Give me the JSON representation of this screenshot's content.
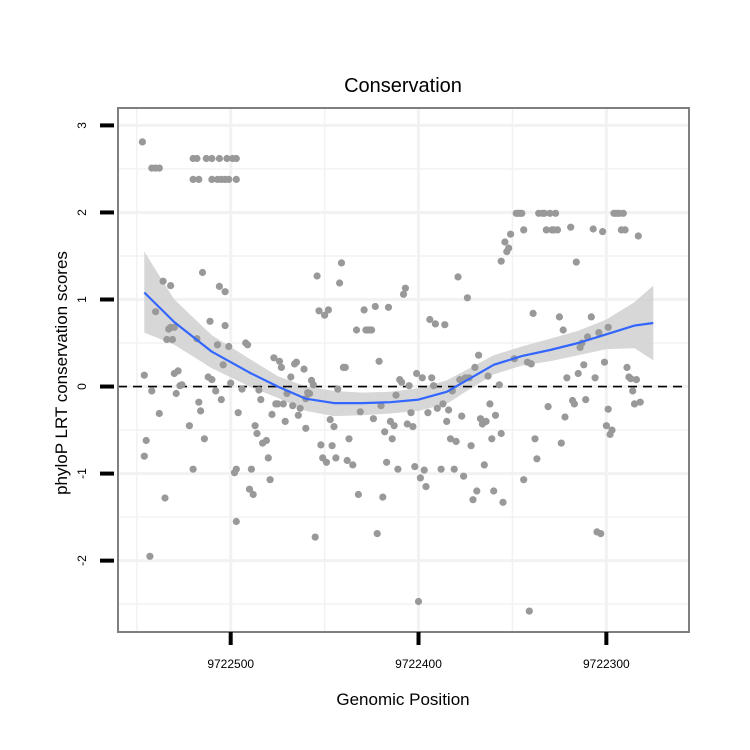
{
  "chart_data": {
    "type": "scatter",
    "title": "Conservation",
    "xlabel": "Genomic Position",
    "ylabel": "phyloP LRT conservation scores",
    "x_reversed": true,
    "xlim": [
      9722560,
      9722256
    ],
    "ylim": [
      -2.82,
      3.2
    ],
    "x_ticks": [
      9722500,
      9722400,
      9722300
    ],
    "x_tick_labels": [
      "9722500",
      "9722400",
      "9722300"
    ],
    "y_ticks": [
      3,
      2,
      1,
      0,
      -1,
      -2
    ],
    "y_tick_labels": [
      "3",
      "2",
      "1",
      "0",
      "-1",
      "-2"
    ],
    "grid": true,
    "reference_line": {
      "y": 0,
      "style": "dashed"
    },
    "colors": {
      "points": "#999999",
      "smooth_line": "#3366ff",
      "confidence_band": "#d0d0d0",
      "panel_border": "#7f7f7f",
      "grid": "#f2f2f2"
    },
    "points": [
      [
        9722547,
        2.81
      ],
      [
        9722542,
        2.51
      ],
      [
        9722540,
        2.51
      ],
      [
        9722538,
        2.51
      ],
      [
        9722520,
        2.62
      ],
      [
        9722518,
        2.62
      ],
      [
        9722513,
        2.62
      ],
      [
        9722510,
        2.62
      ],
      [
        9722506,
        2.62
      ],
      [
        9722502,
        2.62
      ],
      [
        9722499,
        2.62
      ],
      [
        9722497,
        2.62
      ],
      [
        9722520,
        2.38
      ],
      [
        9722517,
        2.38
      ],
      [
        9722510,
        2.38
      ],
      [
        9722507,
        2.38
      ],
      [
        9722505,
        2.38
      ],
      [
        9722503,
        2.38
      ],
      [
        9722501,
        2.38
      ],
      [
        9722497,
        2.38
      ],
      [
        9722546,
        0.13
      ],
      [
        9722545,
        -0.62
      ],
      [
        9722546,
        -0.8
      ],
      [
        9722543,
        -1.95
      ],
      [
        9722542,
        -0.05
      ],
      [
        9722540,
        0.86
      ],
      [
        9722538,
        -0.31
      ],
      [
        9722536,
        1.21
      ],
      [
        9722535,
        -1.28
      ],
      [
        9722534,
        0.54
      ],
      [
        9722533,
        0.66
      ],
      [
        9722532,
        1.16
      ],
      [
        9722532,
        0.68
      ],
      [
        9722531,
        0.54
      ],
      [
        9722530,
        0.15
      ],
      [
        9722530,
        0.68
      ],
      [
        9722529,
        -0.08
      ],
      [
        9722528,
        0.18
      ],
      [
        9722527,
        0.01
      ],
      [
        9722526,
        0.02
      ],
      [
        9722522,
        -0.45
      ],
      [
        9722520,
        -0.95
      ],
      [
        9722518,
        0.55
      ],
      [
        9722517,
        -0.18
      ],
      [
        9722516,
        -0.28
      ],
      [
        9722515,
        1.31
      ],
      [
        9722514,
        -0.6
      ],
      [
        9722512,
        0.11
      ],
      [
        9722511,
        0.75
      ],
      [
        9722510,
        0.08
      ],
      [
        9722508,
        -0.05
      ],
      [
        9722507,
        0.48
      ],
      [
        9722506,
        1.15
      ],
      [
        9722505,
        -0.15
      ],
      [
        9722504,
        0.25
      ],
      [
        9722503,
        0.7
      ],
      [
        9722503,
        1.09
      ],
      [
        9722501,
        0.46
      ],
      [
        9722500,
        0.04
      ],
      [
        9722498,
        -0.99
      ],
      [
        9722497,
        -0.95
      ],
      [
        9722497,
        -1.55
      ],
      [
        9722496,
        -0.3
      ],
      [
        9722494,
        -0.03
      ],
      [
        9722492,
        0.5
      ],
      [
        9722491,
        0.48
      ],
      [
        9722490,
        -1.18
      ],
      [
        9722489,
        -0.95
      ],
      [
        9722488,
        -1.24
      ],
      [
        9722487,
        -0.45
      ],
      [
        9722486,
        -0.54
      ],
      [
        9722485,
        -0.04
      ],
      [
        9722484,
        -0.15
      ],
      [
        9722483,
        -0.65
      ],
      [
        9722481,
        -0.62
      ],
      [
        9722480,
        -0.82
      ],
      [
        9722479,
        -1.07
      ],
      [
        9722478,
        -0.32
      ],
      [
        9722477,
        0.33
      ],
      [
        9722476,
        -0.2
      ],
      [
        9722475,
        -0.2
      ],
      [
        9722474,
        0.29
      ],
      [
        9722473,
        0.22
      ],
      [
        9722472,
        -0.2
      ],
      [
        9722471,
        -0.4
      ],
      [
        9722470,
        -0.08
      ],
      [
        9722468,
        0.11
      ],
      [
        9722467,
        -0.22
      ],
      [
        9722466,
        0.26
      ],
      [
        9722465,
        0.28
      ],
      [
        9722464,
        -0.33
      ],
      [
        9722463,
        -0.25
      ],
      [
        9722461,
        0.2
      ],
      [
        9722460,
        -0.14
      ],
      [
        9722460,
        -0.48
      ],
      [
        9722459,
        -0.07
      ],
      [
        9722458,
        -0.08
      ],
      [
        9722457,
        0.07
      ],
      [
        9722456,
        0.02
      ],
      [
        9722455,
        -1.73
      ],
      [
        9722454,
        1.27
      ],
      [
        9722453,
        0.87
      ],
      [
        9722452,
        -0.67
      ],
      [
        9722451,
        -0.82
      ],
      [
        9722450,
        0.82
      ],
      [
        9722449,
        -0.87
      ],
      [
        9722448,
        0.88
      ],
      [
        9722447,
        -0.38
      ],
      [
        9722446,
        -0.68
      ],
      [
        9722445,
        -0.46
      ],
      [
        9722444,
        -0.82
      ],
      [
        9722443,
        -0.03
      ],
      [
        9722442,
        1.19
      ],
      [
        9722441,
        1.42
      ],
      [
        9722440,
        0.22
      ],
      [
        9722439,
        0.22
      ],
      [
        9722438,
        -0.85
      ],
      [
        9722437,
        -0.6
      ],
      [
        9722435,
        -0.9
      ],
      [
        9722433,
        0.65
      ],
      [
        9722432,
        -1.24
      ],
      [
        9722431,
        -0.29
      ],
      [
        9722429,
        0.88
      ],
      [
        9722428,
        0.65
      ],
      [
        9722427,
        0.65
      ],
      [
        9722426,
        0.65
      ],
      [
        9722425,
        0.65
      ],
      [
        9722424,
        -0.37
      ],
      [
        9722423,
        0.92
      ],
      [
        9722422,
        -1.69
      ],
      [
        9722421,
        0.29
      ],
      [
        9722420,
        -0.22
      ],
      [
        9722419,
        -1.27
      ],
      [
        9722418,
        -0.52
      ],
      [
        9722417,
        -0.87
      ],
      [
        9722416,
        0.91
      ],
      [
        9722415,
        -0.4
      ],
      [
        9722414,
        -0.6
      ],
      [
        9722413,
        -0.45
      ],
      [
        9722412,
        -0.1
      ],
      [
        9722411,
        -0.95
      ],
      [
        9722410,
        0.08
      ],
      [
        9722409,
        0.05
      ],
      [
        9722408,
        1.06
      ],
      [
        9722407,
        1.13
      ],
      [
        9722406,
        -0.43
      ],
      [
        9722405,
        0.01
      ],
      [
        9722404,
        -0.3
      ],
      [
        9722403,
        -0.46
      ],
      [
        9722402,
        -0.92
      ],
      [
        9722401,
        0.15
      ],
      [
        9722400,
        -2.47
      ],
      [
        9722399,
        -1.05
      ],
      [
        9722398,
        0.1
      ],
      [
        9722397,
        -0.96
      ],
      [
        9722396,
        -1.15
      ],
      [
        9722395,
        -0.3
      ],
      [
        9722394,
        0.77
      ],
      [
        9722393,
        0.1
      ],
      [
        9722392,
        0.01
      ],
      [
        9722391,
        0.72
      ],
      [
        9722390,
        -0.25
      ],
      [
        9722388,
        -0.95
      ],
      [
        9722387,
        -0.2
      ],
      [
        9722386,
        0.71
      ],
      [
        9722385,
        -0.4
      ],
      [
        9722384,
        -0.27
      ],
      [
        9722383,
        -0.6
      ],
      [
        9722382,
        -0.05
      ],
      [
        9722381,
        -0.95
      ],
      [
        9722380,
        -0.63
      ],
      [
        9722379,
        1.26
      ],
      [
        9722378,
        0.08
      ],
      [
        9722377,
        -0.34
      ],
      [
        9722376,
        -1.03
      ],
      [
        9722375,
        0.1
      ],
      [
        9722374,
        1.02
      ],
      [
        9722373,
        0.1
      ],
      [
        9722372,
        -0.68
      ],
      [
        9722371,
        -1.3
      ],
      [
        9722370,
        0.22
      ],
      [
        9722369,
        -1.2
      ],
      [
        9722368,
        0.36
      ],
      [
        9722367,
        -0.37
      ],
      [
        9722366,
        -0.43
      ],
      [
        9722365,
        -0.9
      ],
      [
        9722364,
        -0.4
      ],
      [
        9722363,
        0.12
      ],
      [
        9722362,
        -0.2
      ],
      [
        9722361,
        -0.6
      ],
      [
        9722360,
        -1.2
      ],
      [
        9722359,
        -0.33
      ],
      [
        9722357,
        0.02
      ],
      [
        9722356,
        -0.54
      ],
      [
        9722356,
        1.44
      ],
      [
        9722355,
        -1.33
      ],
      [
        9722354,
        1.66
      ],
      [
        9722353,
        1.55
      ],
      [
        9722352,
        1.59
      ],
      [
        9722351,
        1.75
      ],
      [
        9722349,
        0.32
      ],
      [
        9722348,
        1.99
      ],
      [
        9722347,
        1.99
      ],
      [
        9722346,
        1.99
      ],
      [
        9722345,
        1.99
      ],
      [
        9722344,
        -1.07
      ],
      [
        9722344,
        1.8
      ],
      [
        9722342,
        0.28
      ],
      [
        9722341,
        -2.58
      ],
      [
        9722340,
        0.26
      ],
      [
        9722339,
        0.84
      ],
      [
        9722338,
        -0.6
      ],
      [
        9722337,
        -0.83
      ],
      [
        9722336,
        1.99
      ],
      [
        9722334,
        1.99
      ],
      [
        9722333,
        1.99
      ],
      [
        9722332,
        1.8
      ],
      [
        9722331,
        -0.23
      ],
      [
        9722330,
        1.99
      ],
      [
        9722329,
        1.8
      ],
      [
        9722328,
        1.8
      ],
      [
        9722327,
        1.99
      ],
      [
        9722326,
        1.8
      ],
      [
        9722325,
        0.8
      ],
      [
        9722324,
        -0.65
      ],
      [
        9722323,
        0.65
      ],
      [
        9722322,
        -0.35
      ],
      [
        9722321,
        0.1
      ],
      [
        9722319,
        1.83
      ],
      [
        9722318,
        -0.16
      ],
      [
        9722317,
        -0.2
      ],
      [
        9722316,
        1.43
      ],
      [
        9722315,
        0.15
      ],
      [
        9722314,
        0.45
      ],
      [
        9722313,
        0.5
      ],
      [
        9722312,
        0.25
      ],
      [
        9722311,
        -0.15
      ],
      [
        9722310,
        0.57
      ],
      [
        9722308,
        0.8
      ],
      [
        9722307,
        1.81
      ],
      [
        9722306,
        0.1
      ],
      [
        9722305,
        -1.67
      ],
      [
        9722304,
        0.62
      ],
      [
        9722303,
        -1.69
      ],
      [
        9722302,
        1.78
      ],
      [
        9722301,
        0.28
      ],
      [
        9722300,
        -0.45
      ],
      [
        9722299,
        0.68
      ],
      [
        9722299,
        -0.26
      ],
      [
        9722298,
        -0.55
      ],
      [
        9722297,
        -0.5
      ],
      [
        9722296,
        1.99
      ],
      [
        9722295,
        1.99
      ],
      [
        9722294,
        1.99
      ],
      [
        9722293,
        1.99
      ],
      [
        9722292,
        1.8
      ],
      [
        9722291,
        1.99
      ],
      [
        9722290,
        1.8
      ],
      [
        9722289,
        0.22
      ],
      [
        9722288,
        0.11
      ],
      [
        9722287,
        0.09
      ],
      [
        9722286,
        -0.05
      ],
      [
        9722285,
        -0.2
      ],
      [
        9722284,
        0.08
      ],
      [
        9722283,
        1.73
      ],
      [
        9722282,
        -0.18
      ]
    ],
    "smooth_line": [
      [
        9722546,
        1.08
      ],
      [
        9722530,
        0.74
      ],
      [
        9722510,
        0.4
      ],
      [
        9722490,
        0.16
      ],
      [
        9722475,
        0.0
      ],
      [
        9722460,
        -0.14
      ],
      [
        9722445,
        -0.19
      ],
      [
        9722430,
        -0.19
      ],
      [
        9722415,
        -0.18
      ],
      [
        9722400,
        -0.15
      ],
      [
        9722385,
        -0.06
      ],
      [
        9722372,
        0.1
      ],
      [
        9722360,
        0.25
      ],
      [
        9722345,
        0.35
      ],
      [
        9722330,
        0.42
      ],
      [
        9722315,
        0.5
      ],
      [
        9722300,
        0.6
      ],
      [
        9722285,
        0.7
      ],
      [
        9722275,
        0.73
      ]
    ],
    "confidence_band": {
      "upper": [
        [
          9722546,
          1.55
        ],
        [
          9722530,
          1.0
        ],
        [
          9722510,
          0.59
        ],
        [
          9722490,
          0.32
        ],
        [
          9722475,
          0.12
        ],
        [
          9722460,
          0.0
        ],
        [
          9722445,
          -0.05
        ],
        [
          9722430,
          -0.07
        ],
        [
          9722415,
          -0.06
        ],
        [
          9722400,
          -0.02
        ],
        [
          9722385,
          0.07
        ],
        [
          9722372,
          0.22
        ],
        [
          9722360,
          0.36
        ],
        [
          9722345,
          0.46
        ],
        [
          9722330,
          0.55
        ],
        [
          9722315,
          0.64
        ],
        [
          9722300,
          0.77
        ],
        [
          9722285,
          0.97
        ],
        [
          9722275,
          1.16
        ]
      ],
      "lower": [
        [
          9722546,
          0.62
        ],
        [
          9722530,
          0.48
        ],
        [
          9722510,
          0.21
        ],
        [
          9722490,
          0.0
        ],
        [
          9722475,
          -0.13
        ],
        [
          9722460,
          -0.28
        ],
        [
          9722445,
          -0.34
        ],
        [
          9722430,
          -0.33
        ],
        [
          9722415,
          -0.31
        ],
        [
          9722400,
          -0.28
        ],
        [
          9722385,
          -0.2
        ],
        [
          9722372,
          -0.02
        ],
        [
          9722360,
          0.14
        ],
        [
          9722345,
          0.24
        ],
        [
          9722330,
          0.29
        ],
        [
          9722315,
          0.36
        ],
        [
          9722300,
          0.43
        ],
        [
          9722285,
          0.44
        ],
        [
          9722275,
          0.3
        ]
      ]
    }
  }
}
